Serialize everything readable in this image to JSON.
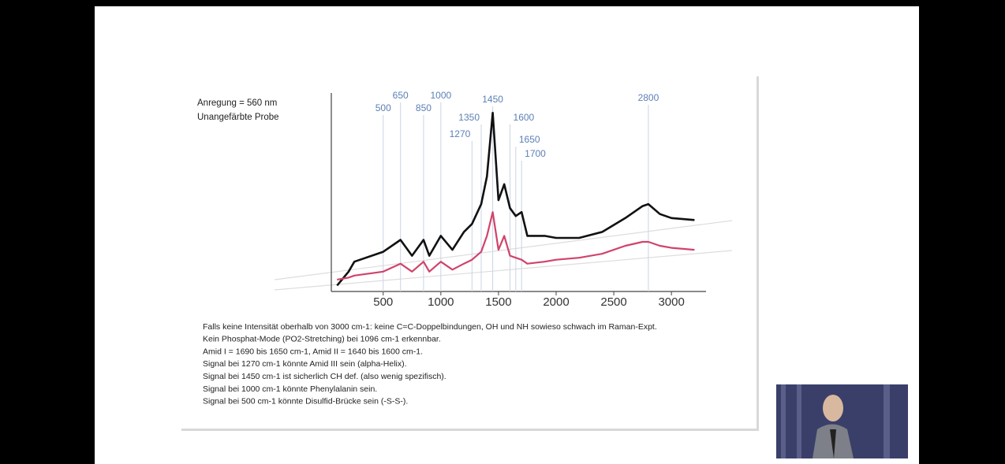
{
  "chart_data": {
    "type": "line",
    "annotations": [
      "Anregung = 560 nm",
      "Unangefärbte Probe"
    ],
    "peak_markers": [
      500,
      650,
      850,
      1000,
      1270,
      1350,
      1450,
      1600,
      1650,
      1700,
      2800
    ],
    "x": [
      100,
      200,
      250,
      500,
      650,
      750,
      850,
      900,
      1000,
      1100,
      1200,
      1270,
      1350,
      1400,
      1450,
      1500,
      1550,
      1600,
      1650,
      1700,
      1750,
      1900,
      2000,
      2200,
      2400,
      2600,
      2750,
      2800,
      2900,
      3000,
      3200
    ],
    "series": [
      {
        "color": "#111111",
        "values": [
          3,
          10,
          15,
          20,
          26,
          18,
          26,
          18,
          28,
          21,
          30,
          34,
          44,
          58,
          90,
          46,
          54,
          42,
          38,
          40,
          28,
          28,
          27,
          27,
          30,
          37,
          43,
          44,
          39,
          37,
          36
        ]
      },
      {
        "color": "#d0436a",
        "values": [
          6,
          7,
          8,
          10,
          14,
          10,
          15,
          10,
          15,
          11,
          14,
          16,
          20,
          28,
          40,
          21,
          28,
          18,
          17,
          16,
          14,
          15,
          16,
          17,
          19,
          23,
          25,
          25,
          23,
          22,
          21
        ]
      }
    ],
    "xlim": [
      50,
      3300
    ],
    "ylim": [
      0,
      100
    ],
    "xticks": [
      500,
      1000,
      1500,
      2000,
      2500,
      3000
    ]
  },
  "notes": [
    "Falls keine Intensität oberhalb von 3000 cm-1: keine C=C-Doppelbindungen, OH und NH sowieso schwach im Raman-Expt.",
    "Kein Phosphat-Mode (PO2-Stretching) bei 1096 cm-1 erkennbar.",
    "Amid I = 1690 bis 1650 cm-1, Amid II = 1640 bis 1600 cm-1.",
    "Signal bei 1270 cm-1 könnte Amid III sein (alpha-Helix).",
    "Signal bei 1450 cm-1 ist sicherlich CH def. (also wenig spezifisch).",
    "Signal bei 1000 cm-1 könnte Phenylalanin sein.",
    "Signal bei 500 cm-1 könnte Disulfid-Brücke sein (-S-S-)."
  ]
}
